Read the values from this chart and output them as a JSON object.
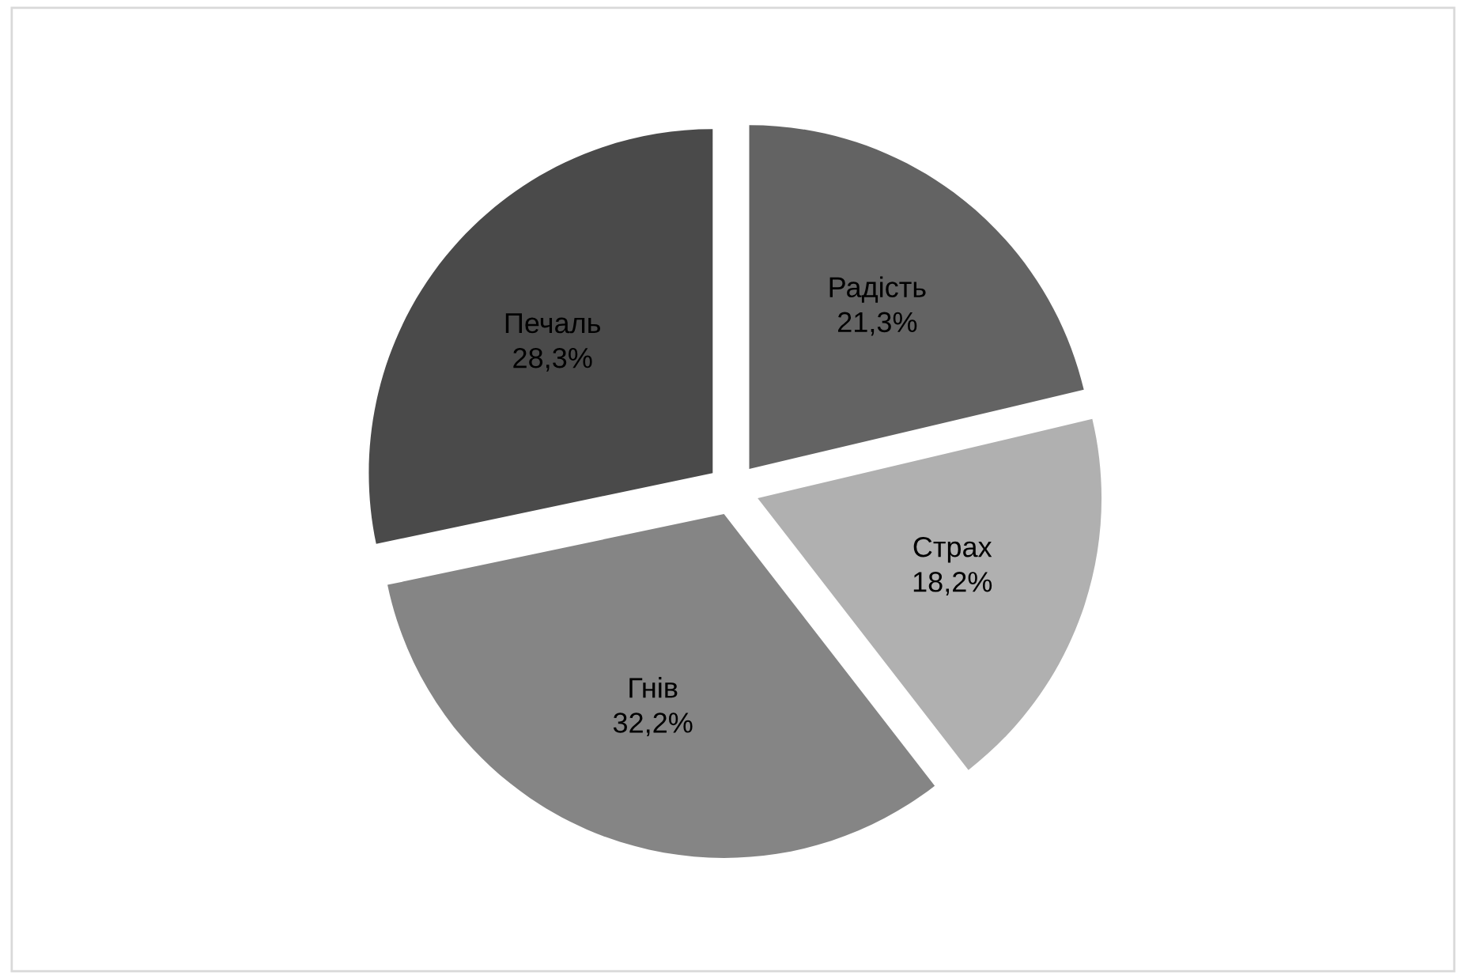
{
  "chart_data": {
    "type": "pie",
    "categories": [
      "Радість",
      "Страх",
      "Гнів",
      "Печаль"
    ],
    "values": [
      21.3,
      18.2,
      32.2,
      28.3
    ],
    "colors": [
      "#636363",
      "#b0b0b0",
      "#858585",
      "#4a4a4a"
    ],
    "value_labels": [
      "21,3%",
      "18,2%",
      "32,2%",
      "28,3%"
    ],
    "legend": false
  }
}
